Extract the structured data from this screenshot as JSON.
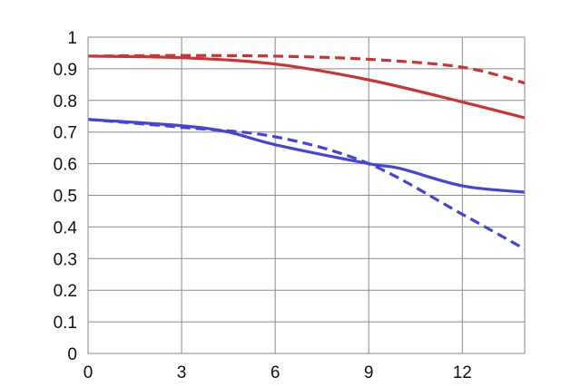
{
  "chart_data": {
    "type": "line",
    "title": "",
    "xlabel": "",
    "ylabel": "",
    "xlim": [
      0,
      14
    ],
    "ylim": [
      0,
      1
    ],
    "x_ticks": [
      "0",
      "3",
      "6",
      "9",
      "12"
    ],
    "y_ticks": [
      "0",
      "0.1",
      "0.2",
      "0.3",
      "0.4",
      "0.5",
      "0.6",
      "0.7",
      "0.8",
      "0.9",
      "1"
    ],
    "grid": true,
    "legend": "none",
    "series": [
      {
        "color": "#cc3333",
        "style": "solid",
        "x": [
          0,
          3,
          6,
          9,
          12,
          14
        ],
        "y": [
          0.94,
          0.935,
          0.915,
          0.865,
          0.795,
          0.745
        ]
      },
      {
        "color": "#cc3333",
        "style": "dashed",
        "x": [
          0,
          3,
          6,
          9,
          12,
          14
        ],
        "y": [
          0.94,
          0.942,
          0.94,
          0.93,
          0.905,
          0.855
        ]
      },
      {
        "color": "#4444dd",
        "style": "solid",
        "x": [
          0,
          3,
          4.5,
          6,
          9,
          10,
          12,
          14
        ],
        "y": [
          0.74,
          0.72,
          0.7,
          0.66,
          0.6,
          0.585,
          0.53,
          0.51
        ]
      },
      {
        "color": "#4444dd",
        "style": "dashed",
        "x": [
          0,
          3,
          6,
          9,
          12,
          14
        ],
        "y": [
          0.74,
          0.715,
          0.685,
          0.6,
          0.44,
          0.33
        ]
      }
    ]
  }
}
